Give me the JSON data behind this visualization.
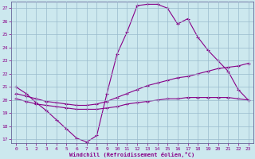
{
  "xlabel": "Windchill (Refroidissement éolien,°C)",
  "bg_color": "#cce8ee",
  "line_color": "#880088",
  "grid_color": "#99bbcc",
  "xlim": [
    -0.5,
    23.5
  ],
  "ylim": [
    16.7,
    27.5
  ],
  "yticks": [
    17,
    18,
    19,
    20,
    21,
    22,
    23,
    24,
    25,
    26,
    27
  ],
  "xticks": [
    0,
    1,
    2,
    3,
    4,
    5,
    6,
    7,
    8,
    9,
    10,
    11,
    12,
    13,
    14,
    15,
    16,
    17,
    18,
    19,
    20,
    21,
    22,
    23
  ],
  "curve1_x": [
    0,
    1,
    2,
    3,
    4,
    5,
    6,
    7,
    8,
    9,
    10,
    11,
    12,
    13,
    14,
    15,
    16,
    17,
    18,
    19,
    20,
    21,
    22,
    23
  ],
  "curve1_y": [
    21.0,
    20.5,
    19.8,
    19.2,
    18.5,
    17.8,
    17.1,
    16.8,
    17.3,
    20.5,
    23.5,
    25.2,
    27.2,
    27.3,
    27.3,
    27.0,
    25.8,
    26.2,
    24.8,
    23.8,
    23.0,
    22.2,
    20.8,
    20.0
  ],
  "curve2_x": [
    0,
    1,
    2,
    3,
    4,
    5,
    6,
    7,
    8,
    9,
    10,
    11,
    12,
    13,
    14,
    15,
    16,
    17,
    18,
    19,
    20,
    21,
    22,
    23
  ],
  "curve2_y": [
    20.5,
    20.3,
    20.1,
    19.9,
    19.8,
    19.7,
    19.6,
    19.6,
    19.7,
    19.9,
    20.2,
    20.5,
    20.8,
    21.1,
    21.3,
    21.5,
    21.7,
    21.8,
    22.0,
    22.2,
    22.4,
    22.5,
    22.6,
    22.8
  ],
  "curve3_x": [
    0,
    1,
    2,
    3,
    4,
    5,
    6,
    7,
    8,
    9,
    10,
    11,
    12,
    13,
    14,
    15,
    16,
    17,
    18,
    19,
    20,
    21,
    22,
    23
  ],
  "curve3_y": [
    20.1,
    19.9,
    19.7,
    19.6,
    19.5,
    19.4,
    19.3,
    19.3,
    19.3,
    19.4,
    19.5,
    19.7,
    19.8,
    19.9,
    20.0,
    20.1,
    20.1,
    20.2,
    20.2,
    20.2,
    20.2,
    20.2,
    20.1,
    20.0
  ]
}
